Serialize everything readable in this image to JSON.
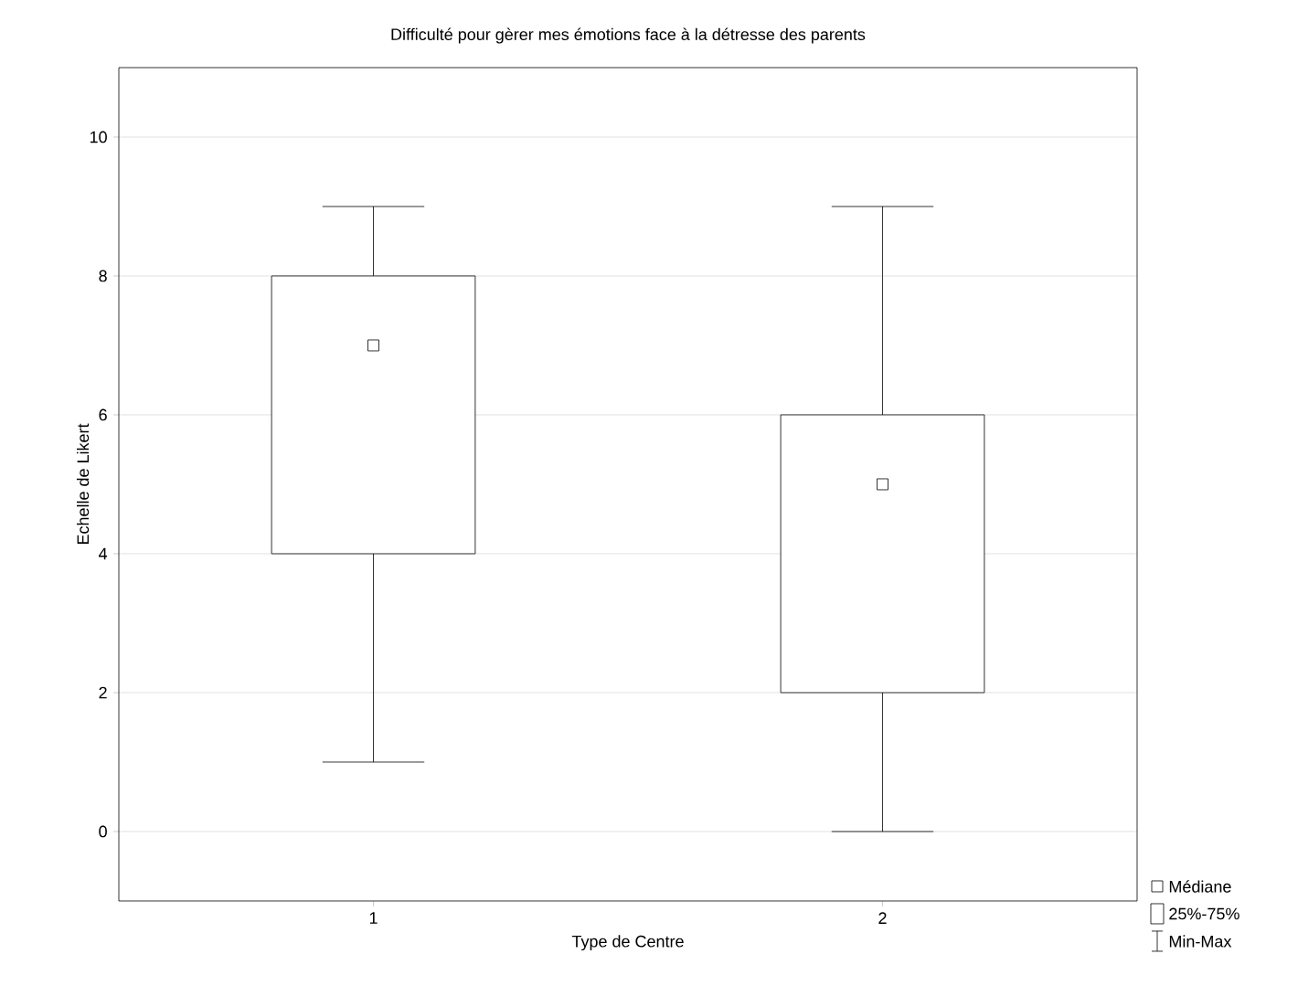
{
  "chart_data": {
    "type": "box",
    "title": "Difficulté pour gèrer mes émotions face à la détresse des parents",
    "xlabel": "Type de Centre",
    "ylabel": "Echelle de Likert",
    "categories": [
      "1",
      "2"
    ],
    "boxes": [
      {
        "low": 1,
        "q1": 4,
        "median": 7,
        "q3": 8,
        "high": 9
      },
      {
        "low": 0,
        "q1": 2,
        "median": 5,
        "q3": 6,
        "high": 9
      }
    ],
    "ylim": [
      -1,
      11
    ],
    "yticks": [
      0,
      2,
      4,
      6,
      8,
      10
    ],
    "grid": "y",
    "marker": "square",
    "annotations": [
      "Médiane",
      "25%-75%",
      "Min-Max"
    ]
  }
}
